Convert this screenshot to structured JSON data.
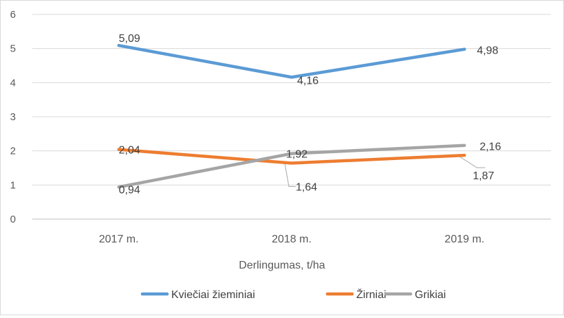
{
  "chart_data": {
    "type": "line",
    "title": "",
    "xlabel": "Derlingumas, t/ha",
    "ylabel": "",
    "categories": [
      "2017 m.",
      "2018 m.",
      "2019 m."
    ],
    "ylim": [
      0,
      6
    ],
    "yticks": [
      "0",
      "1",
      "2",
      "3",
      "4",
      "5",
      "6"
    ],
    "grid": true,
    "legend_position": "bottom",
    "series": [
      {
        "name": "Kviečiai žieminiai",
        "color": "#5b9bd5",
        "values": [
          5.09,
          4.16,
          4.98
        ],
        "labels": [
          "5,09",
          "4,16",
          "4,98"
        ]
      },
      {
        "name": "Žirniai",
        "color": "#ed7d31",
        "values": [
          2.04,
          1.64,
          1.87
        ],
        "labels": [
          "2,04",
          "1,64",
          "1,87"
        ]
      },
      {
        "name": "Grikiai",
        "color": "#a5a5a5",
        "values": [
          0.94,
          1.92,
          2.16
        ],
        "labels": [
          "0,94",
          "1,92",
          "2,16"
        ]
      }
    ]
  }
}
